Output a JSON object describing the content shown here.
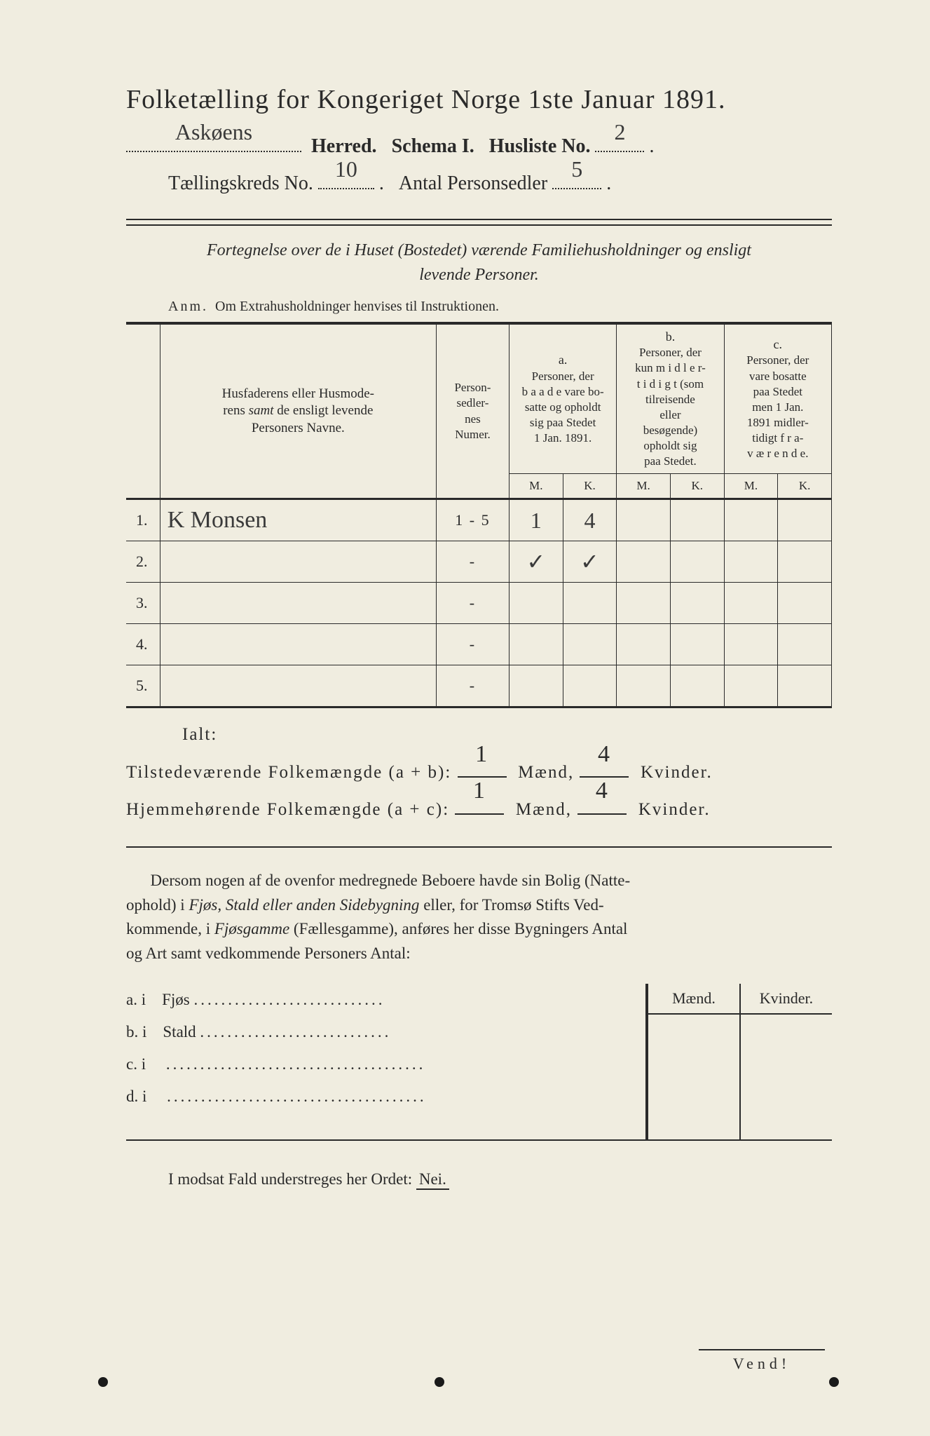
{
  "colors": {
    "paper": "#f0ede0",
    "ink": "#2a2a2a",
    "handwriting": "#3a3a3a",
    "background": "#2a2a2a"
  },
  "title": "Folketælling for Kongeriget Norge 1ste Januar 1891.",
  "header": {
    "herred_value": "Askøens",
    "herred_label": "Herred.",
    "schema_label": "Schema I.",
    "husliste_label": "Husliste No.",
    "husliste_value": "2",
    "kreds_label": "Tællingskreds No.",
    "kreds_value": "10",
    "antal_label": "Antal Personsedler",
    "antal_value": "5"
  },
  "subtitle_line1": "Fortegnelse over de i Huset (Bostedet) værende Familiehusholdninger og ensligt",
  "subtitle_line2": "levende Personer.",
  "anm_label": "Anm.",
  "anm_text": "Om Extrahusholdninger henvises til Instruktionen.",
  "table": {
    "col_name": "Husfaderens eller Husmoderens samt de ensligt levende Personers Navne.",
    "col_sedler": "Person-sedler-nes Numer.",
    "group_a_label": "a.",
    "group_a_text": "Personer, der baade vare bosatte og opholdt sig paa Stedet 1 Jan. 1891.",
    "group_b_label": "b.",
    "group_b_text": "Personer, der kun midler-tidigt (som tilreisende eller besøgende) opholdt sig paa Stedet.",
    "group_c_label": "c.",
    "group_c_text": "Personer, der vare bosatte paa Stedet men 1 Jan. 1891 midler-tidigt fra-værende.",
    "m_label": "M.",
    "k_label": "K.",
    "rows": [
      {
        "num": "1.",
        "name": "K Monsen",
        "sedler": "1 - 5",
        "a_m": "1",
        "a_k": "4",
        "b_m": "",
        "b_k": "",
        "c_m": "",
        "c_k": ""
      },
      {
        "num": "2.",
        "name": "",
        "sedler": "-",
        "a_m": "✓",
        "a_k": "✓",
        "b_m": "",
        "b_k": "",
        "c_m": "",
        "c_k": ""
      },
      {
        "num": "3.",
        "name": "",
        "sedler": "-",
        "a_m": "",
        "a_k": "",
        "b_m": "",
        "b_k": "",
        "c_m": "",
        "c_k": ""
      },
      {
        "num": "4.",
        "name": "",
        "sedler": "-",
        "a_m": "",
        "a_k": "",
        "b_m": "",
        "b_k": "",
        "c_m": "",
        "c_k": ""
      },
      {
        "num": "5.",
        "name": "",
        "sedler": "-",
        "a_m": "",
        "a_k": "",
        "b_m": "",
        "b_k": "",
        "c_m": "",
        "c_k": ""
      }
    ]
  },
  "ialt": "Ialt:",
  "totals": {
    "line1_label": "Tilstedeværende Folkemængde (a + b):",
    "line2_label": "Hjemmehørende Folkemængde (a + c):",
    "maend_label": "Mænd,",
    "kvinder_label": "Kvinder.",
    "ab_m": "1",
    "ab_k": "4",
    "ac_m": "1",
    "ac_k": "4"
  },
  "para_text": "Dersom nogen af de ovenfor medregnede Beboere havde sin Bolig (Natte­ophold) i Fjøs, Stald eller anden Sidebygning eller, for Tromsø Stifts Ved­kommende, i Fjøsgamme (Fællesgamme), anføres her disse Bygningers Antal og Art samt vedkommende Personers Antal:",
  "sidetable": {
    "maend": "Mænd.",
    "kvinder": "Kvinder.",
    "rows": [
      {
        "label": "a.  i",
        "name": "Fjøs"
      },
      {
        "label": "b.  i",
        "name": "Stald"
      },
      {
        "label": "c.  i",
        "name": ""
      },
      {
        "label": "d.  i",
        "name": ""
      }
    ]
  },
  "nei_prefix": "I modsat Fald understreges her Ordet:",
  "nei_word": "Nei.",
  "vend": "Vend!"
}
